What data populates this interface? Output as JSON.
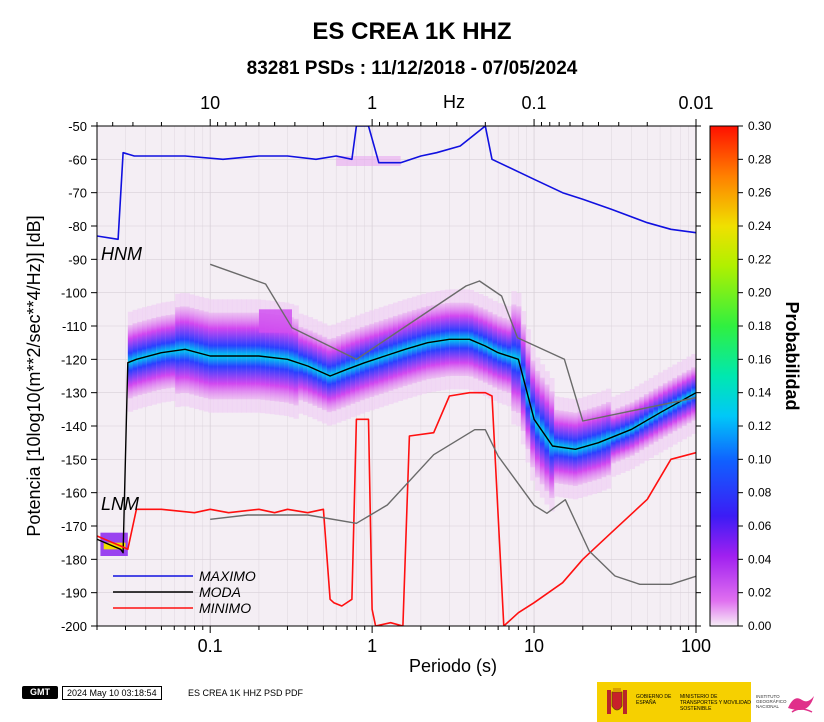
{
  "title": "ES CREA 1K HHZ",
  "subtitle": "83281 PSDs : 11/12/2018 - 07/05/2024",
  "footer": {
    "logo": "GMT",
    "timestamp": "2024 May 10 03:18:54",
    "caption": "ES CREA 1K HHZ PSD PDF",
    "gov_line1": "GOBIERNO DE ESPAÑA",
    "gov_line2": "MINISTERIO DE TRANSPORTES Y MOVILIDAD SOSTENIBLE",
    "ign_text": "INSTITUTO GEOGRÁFICO NACIONAL"
  },
  "colors": {
    "maximo": "#1010e0",
    "moda": "#000000",
    "minimo": "#ff1010",
    "noise_models": "#6a6a6a",
    "plot_background": "#f4eef4"
  },
  "chart_data": {
    "type": "heatmap",
    "xlabel": "Periodo (s)",
    "ylabel": "Potencia [10log10(m**2/sec**4/Hz)] [dB]",
    "x_scale": "log",
    "xlim": [
      0.02,
      100
    ],
    "ylim": [
      -200,
      -50
    ],
    "x_ticks": [
      0.1,
      1,
      10,
      100
    ],
    "x_tick_labels": [
      "0.1",
      "1",
      "10",
      "100"
    ],
    "y_ticks": [
      -200,
      -190,
      -180,
      -170,
      -160,
      -150,
      -140,
      -130,
      -120,
      -110,
      -100,
      -90,
      -80,
      -70,
      -60,
      -50
    ],
    "y_tick_labels": [
      "-200",
      "-190",
      "-180",
      "-170",
      "-160",
      "-150",
      "-140",
      "-130",
      "-120",
      "-110",
      "-100",
      "-90",
      "-80",
      "-70",
      "-60",
      "-50"
    ],
    "top_axis": {
      "label": "Hz",
      "ticks": [
        10,
        1,
        0.1,
        0.01
      ],
      "tick_labels": [
        "10",
        "1",
        "0.1",
        "0.01"
      ]
    },
    "colorbar": {
      "label": "Probabilidad",
      "range": [
        0,
        0.3
      ],
      "ticks": [
        0,
        0.02,
        0.04,
        0.06,
        0.08,
        0.1,
        0.12,
        0.14,
        0.16,
        0.18,
        0.2,
        0.22,
        0.24,
        0.26,
        0.28,
        0.3
      ],
      "tick_labels": [
        "0.00",
        "0.02",
        "0.04",
        "0.06",
        "0.08",
        "0.10",
        "0.12",
        "0.14",
        "0.16",
        "0.18",
        "0.20",
        "0.22",
        "0.24",
        "0.26",
        "0.28",
        "0.30"
      ]
    },
    "annotations": [
      "HNM",
      "LNM"
    ],
    "legend": {
      "placement": "bottom-left",
      "entries": [
        "MAXIMO",
        "MODA",
        "MINIMO"
      ]
    },
    "series": [
      {
        "name": "MAXIMO",
        "x": [
          0.02,
          0.027,
          0.029,
          0.034,
          0.045,
          0.07,
          0.12,
          0.2,
          0.3,
          0.45,
          0.6,
          0.75,
          0.8,
          0.95,
          1.1,
          1.5,
          2.0,
          2.5,
          3.5,
          5.0,
          5.5,
          10,
          15,
          20,
          30,
          50,
          70,
          100
        ],
        "y": [
          -83,
          -84,
          -58,
          -59,
          -59,
          -59,
          -60,
          -59,
          -59,
          -60,
          -59,
          -60,
          -50,
          -50,
          -61,
          -61,
          -59,
          -58,
          -56,
          -50,
          -60,
          -66,
          -70,
          -72,
          -75,
          -79,
          -81,
          -82
        ]
      },
      {
        "name": "MODA",
        "x": [
          0.02,
          0.025,
          0.028,
          0.029,
          0.031,
          0.035,
          0.05,
          0.07,
          0.1,
          0.15,
          0.2,
          0.3,
          0.4,
          0.55,
          0.7,
          0.9,
          1.2,
          1.6,
          2.2,
          3,
          4,
          5,
          6,
          8,
          10,
          13,
          18,
          25,
          40,
          60,
          100
        ],
        "y": [
          -174,
          -176,
          -177,
          -178,
          -121,
          -120,
          -118,
          -117,
          -119,
          -119,
          -119,
          -120,
          -122,
          -125,
          -123,
          -121,
          -119,
          -117,
          -115,
          -114,
          -114,
          -116,
          -118,
          -120,
          -138,
          -146,
          -147,
          -145,
          -141,
          -136,
          -130
        ]
      },
      {
        "name": "MINIMO",
        "x": [
          0.02,
          0.025,
          0.028,
          0.031,
          0.035,
          0.05,
          0.08,
          0.1,
          0.13,
          0.2,
          0.25,
          0.3,
          0.4,
          0.5,
          0.55,
          0.58,
          0.65,
          0.75,
          0.8,
          0.95,
          1.0,
          1.05,
          1.3,
          1.55,
          1.7,
          2.4,
          3.0,
          4.0,
          5.0,
          5.5,
          6.5,
          8,
          10,
          15,
          20,
          30,
          50,
          70,
          100
        ],
        "y": [
          -173,
          -175,
          -176,
          -177,
          -165,
          -165,
          -166,
          -165,
          -166,
          -165,
          -166,
          -165,
          -166,
          -165,
          -192,
          -193,
          -194,
          -192,
          -138,
          -138,
          -195,
          -200,
          -199,
          -200,
          -143,
          -142,
          -131,
          -130,
          -130,
          -131,
          -200,
          -196,
          -193,
          -187,
          -180,
          -172,
          -162,
          -150,
          -148
        ]
      },
      {
        "name": "HNM",
        "x": [
          0.1,
          0.22,
          0.32,
          0.8,
          3.8,
          4.6,
          6.3,
          7.9,
          15.4,
          20,
          354
        ],
        "y": [
          -91.5,
          -97.4,
          -110.5,
          -120,
          -98,
          -96.5,
          -101,
          -113.5,
          -120,
          -138.5,
          -126
        ]
      },
      {
        "name": "LNM",
        "x": [
          0.1,
          0.17,
          0.4,
          0.8,
          1.24,
          2.4,
          4.3,
          5,
          6,
          10,
          12,
          15.6,
          21.9,
          31.6,
          45,
          70,
          101
        ],
        "y": [
          -168,
          -166.7,
          -166.7,
          -169.2,
          -163.7,
          -148.6,
          -141.1,
          -141.1,
          -149,
          -163.8,
          -166.2,
          -162.1,
          -177.5,
          -185,
          -187.5,
          -187.5,
          -185
        ]
      }
    ]
  }
}
